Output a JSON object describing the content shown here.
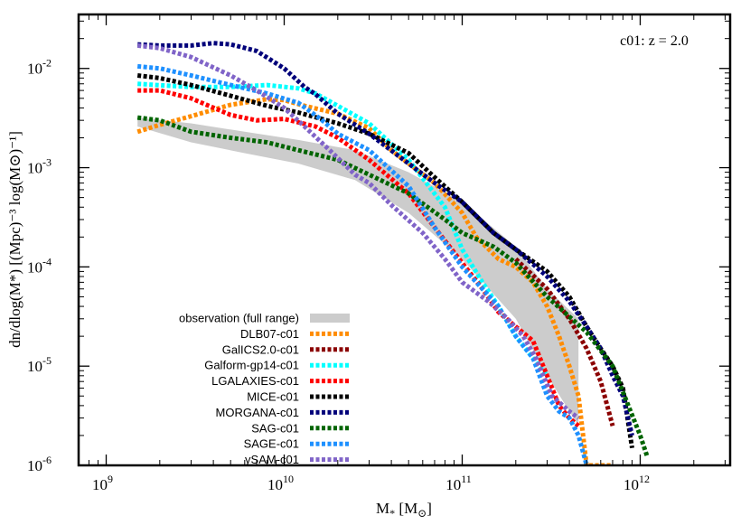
{
  "chart_data": {
    "type": "line",
    "panel_label": "c01: z = 2.0",
    "xlabel": {
      "main": "M",
      "sub": "*",
      "rest": " [M",
      "sun": "⊙",
      "close": "]"
    },
    "ylabel": "dn/dlog(M*) [(Mpc)⁻³ log(M⊙)⁻¹]",
    "x_scale": "log",
    "y_scale": "log",
    "xlim": [
      700000000.0,
      3200000000000.0
    ],
    "ylim": [
      1e-06,
      0.035
    ],
    "x_ticks": [
      {
        "base": "10",
        "exp": "9",
        "value": 1000000000.0
      },
      {
        "base": "10",
        "exp": "10",
        "value": 10000000000.0
      },
      {
        "base": "10",
        "exp": "11",
        "value": 100000000000.0
      },
      {
        "base": "10",
        "exp": "12",
        "value": 1000000000000.0
      }
    ],
    "y_ticks": [
      {
        "base": "10",
        "exp": "-6",
        "value": 1e-06
      },
      {
        "base": "10",
        "exp": "-5",
        "value": 1e-05
      },
      {
        "base": "10",
        "exp": "-4",
        "value": 0.0001
      },
      {
        "base": "10",
        "exp": "-3",
        "value": 0.001
      },
      {
        "base": "10",
        "exp": "-2",
        "value": 0.01
      }
    ],
    "observation": {
      "name": "observation (full range)",
      "color": "#cccccc",
      "x": [
        1500000000.0,
        3000000000.0,
        6000000000.0,
        12000000000.0,
        25000000000.0,
        50000000000.0,
        100000000000.0,
        200000000000.0,
        300000000000.0,
        450000000000.0
      ],
      "upper": [
        0.0032,
        0.0028,
        0.0023,
        0.0019,
        0.0015,
        0.0009,
        0.00045,
        0.00016,
        6e-05,
        3e-05
      ],
      "lower": [
        0.0026,
        0.0018,
        0.0014,
        0.0011,
        0.00075,
        0.00035,
        0.00012,
        3e-05,
        8e-06,
        2.5e-06
      ]
    },
    "series": [
      {
        "name": "DLB07-c01",
        "color": "#ff8c00",
        "x": [
          1500000000.0,
          2000000000.0,
          3000000000.0,
          5000000000.0,
          8000000000.0,
          10000000000.0,
          13000000000.0,
          20000000000.0,
          30000000000.0,
          40000000000.0,
          50000000000.0,
          70000000000.0,
          100000000000.0,
          120000000000.0,
          160000000000.0,
          200000000000.0,
          250000000000.0,
          300000000000.0,
          350000000000.0,
          400000000000.0,
          450000000000.0,
          500000000000.0,
          700000000000.0
        ],
        "values": [
          0.0023,
          0.0027,
          0.0033,
          0.0043,
          0.0049,
          0.0048,
          0.0042,
          0.0035,
          0.0025,
          0.0015,
          0.0011,
          0.0007,
          0.00035,
          0.0002,
          0.00012,
          0.0001,
          7e-05,
          4e-05,
          2e-05,
          1e-05,
          5e-06,
          1e-06,
          1e-06
        ]
      },
      {
        "name": "GalICS2.0-c01",
        "color": "#8b0000",
        "x": [
          200000000000.0,
          300000000000.0,
          400000000000.0,
          500000000000.0,
          600000000000.0,
          700000000000.0
        ],
        "values": [
          0.00012,
          6e-05,
          3e-05,
          1.5e-05,
          7e-06,
          2.5e-06
        ]
      },
      {
        "name": "Galform-gp14-c01",
        "color": "#00ffff",
        "x": [
          1500000000.0,
          3000000000.0,
          5000000000.0,
          8000000000.0,
          12000000000.0,
          15000000000.0,
          20000000000.0,
          30000000000.0,
          50000000000.0,
          80000000000.0,
          100000000000.0,
          130000000000.0,
          160000000000.0,
          200000000000.0,
          250000000000.0,
          300000000000.0
        ],
        "values": [
          0.007,
          0.0065,
          0.0065,
          0.0068,
          0.0063,
          0.0056,
          0.0042,
          0.0028,
          0.0012,
          0.0004,
          0.00015,
          7e-05,
          4e-05,
          2e-05,
          1.2e-05,
          8e-06
        ]
      },
      {
        "name": "LGALAXIES-c01",
        "color": "#ff0000",
        "x": [
          1500000000.0,
          2000000000.0,
          3000000000.0,
          5000000000.0,
          7000000000.0,
          10000000000.0,
          15000000000.0,
          20000000000.0,
          30000000000.0,
          50000000000.0,
          70000000000.0,
          100000000000.0,
          130000000000.0,
          160000000000.0,
          200000000000.0,
          250000000000.0,
          300000000000.0,
          350000000000.0,
          400000000000.0,
          450000000000.0
        ],
        "values": [
          0.006,
          0.006,
          0.005,
          0.0034,
          0.003,
          0.0031,
          0.0026,
          0.002,
          0.0012,
          0.00055,
          0.00025,
          0.00011,
          6e-05,
          3.5e-05,
          2.5e-05,
          1.8e-05,
          8e-06,
          4e-06,
          3e-06,
          2.5e-06
        ]
      },
      {
        "name": "MICE-c01",
        "color": "#000000",
        "x": [
          1500000000.0,
          2000000000.0,
          3000000000.0,
          5000000000.0,
          8000000000.0,
          12000000000.0,
          20000000000.0,
          30000000000.0,
          50000000000.0,
          70000000000.0,
          100000000000.0,
          150000000000.0,
          200000000000.0,
          300000000000.0,
          400000000000.0,
          500000000000.0,
          600000000000.0,
          700000000000.0,
          800000000000.0,
          900000000000.0
        ],
        "values": [
          0.0085,
          0.008,
          0.0068,
          0.0053,
          0.0042,
          0.0036,
          0.0028,
          0.0022,
          0.0014,
          0.0008,
          0.00045,
          0.00022,
          0.00015,
          9e-05,
          5e-05,
          2.5e-05,
          1.5e-05,
          1e-05,
          6e-06,
          1.5e-06
        ]
      },
      {
        "name": "MORGANA-c01",
        "color": "#00007a",
        "x": [
          1500000000.0,
          2000000000.0,
          3000000000.0,
          4000000000.0,
          5000000000.0,
          7000000000.0,
          10000000000.0,
          13000000000.0,
          15000000000.0,
          20000000000.0,
          30000000000.0,
          50000000000.0,
          70000000000.0,
          100000000000.0,
          150000000000.0,
          200000000000.0,
          300000000000.0,
          400000000000.0,
          500000000000.0,
          600000000000.0,
          700000000000.0,
          800000000000.0,
          900000000000.0
        ],
        "values": [
          0.0175,
          0.017,
          0.017,
          0.018,
          0.0175,
          0.015,
          0.01,
          0.0065,
          0.0055,
          0.0035,
          0.0022,
          0.0011,
          0.0007,
          0.00045,
          0.00022,
          0.00015,
          8e-05,
          4.5e-05,
          2.5e-05,
          1.5e-05,
          8e-06,
          5e-06,
          2e-06
        ]
      },
      {
        "name": "SAG-c01",
        "color": "#006400",
        "x": [
          1500000000.0,
          2000000000.0,
          3000000000.0,
          5000000000.0,
          8000000000.0,
          12000000000.0,
          20000000000.0,
          30000000000.0,
          50000000000.0,
          80000000000.0,
          100000000000.0,
          150000000000.0,
          200000000000.0,
          300000000000.0,
          500000000000.0,
          700000000000.0,
          1000000000000.0,
          1100000000000.0
        ],
        "values": [
          0.0032,
          0.003,
          0.0023,
          0.002,
          0.0018,
          0.0015,
          0.0012,
          0.00085,
          0.00055,
          0.0003,
          0.00022,
          0.00016,
          0.00011,
          5e-05,
          2.2e-05,
          1e-05,
          2e-06,
          1.2e-06
        ]
      },
      {
        "name": "SAGE-c01",
        "color": "#1e90ff",
        "x": [
          1500000000.0,
          2000000000.0,
          3000000000.0,
          5000000000.0,
          8000000000.0,
          12000000000.0,
          16000000000.0,
          20000000000.0,
          30000000000.0,
          50000000000.0,
          70000000000.0,
          100000000000.0,
          120000000000.0,
          160000000000.0,
          200000000000.0,
          250000000000.0,
          300000000000.0,
          350000000000.0,
          400000000000.0,
          450000000000.0,
          500000000000.0
        ],
        "values": [
          0.0105,
          0.01,
          0.0085,
          0.0068,
          0.0056,
          0.0045,
          0.0031,
          0.0022,
          0.0015,
          0.00065,
          0.00025,
          0.0001,
          7e-05,
          4e-05,
          2e-05,
          1.2e-05,
          5e-06,
          3.5e-06,
          3e-06,
          2e-06,
          1e-06
        ]
      },
      {
        "name": "ySAM-c01",
        "color": "#8064c8",
        "x": [
          1500000000.0,
          2000000000.0,
          3000000000.0,
          5000000000.0,
          7000000000.0,
          10000000000.0,
          13000000000.0,
          18000000000.0,
          25000000000.0,
          30000000000.0,
          40000000000.0,
          60000000000.0,
          80000000000.0,
          100000000000.0,
          140000000000.0,
          180000000000.0,
          220000000000.0,
          260000000000.0,
          320000000000.0,
          400000000000.0,
          450000000000.0
        ],
        "values": [
          0.017,
          0.016,
          0.013,
          0.0085,
          0.006,
          0.004,
          0.0026,
          0.0015,
          0.00085,
          0.0007,
          0.00042,
          0.00022,
          0.00012,
          7e-05,
          4.5e-05,
          3e-05,
          2e-05,
          1.2e-05,
          5e-06,
          3.5e-06,
          3e-06
        ]
      }
    ]
  }
}
